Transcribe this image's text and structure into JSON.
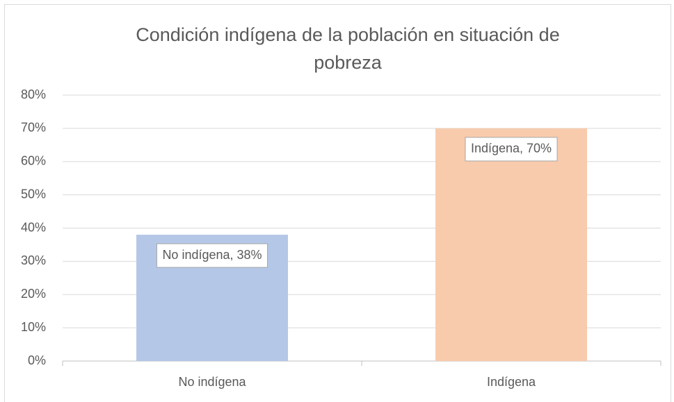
{
  "chart_data": {
    "type": "bar",
    "title": "Condición indígena de la población en situación de pobreza",
    "categories": [
      "No indígena",
      "Indígena"
    ],
    "values": [
      38,
      70
    ],
    "value_labels": [
      "No indígena, 38%",
      "Indígena, 70%"
    ],
    "colors": [
      "#b4c7e7",
      "#f8cbad"
    ],
    "ylim": [
      0,
      80
    ],
    "yticks": [
      {
        "value": 0,
        "label": "0%"
      },
      {
        "value": 10,
        "label": "10%"
      },
      {
        "value": 20,
        "label": "20%"
      },
      {
        "value": 30,
        "label": "30%"
      },
      {
        "value": 40,
        "label": "40%"
      },
      {
        "value": 50,
        "label": "50%"
      },
      {
        "value": 60,
        "label": "60%"
      },
      {
        "value": 70,
        "label": "70%"
      },
      {
        "value": 80,
        "label": "80%"
      }
    ],
    "grid": true
  }
}
